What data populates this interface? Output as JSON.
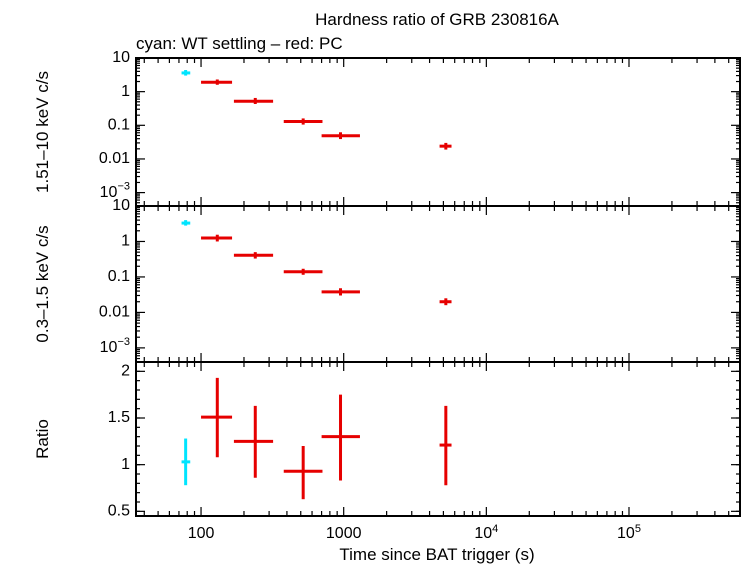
{
  "title": "Hardness ratio of GRB 230816A",
  "subtitle": "cyan: WT settling – red: PC",
  "colors": {
    "wt": "#00e5ff",
    "pc": "#e60000"
  },
  "chart_data": [
    {
      "type": "scatter",
      "ylabel": "1.51–10 keV c/s",
      "yscale": "log",
      "ylim": [
        0.0004,
        10
      ],
      "yticks": [
        {
          "v": 10,
          "m": "10",
          "e": ""
        },
        {
          "v": 1,
          "m": "1",
          "e": ""
        },
        {
          "v": 0.1,
          "m": "0.1",
          "e": ""
        },
        {
          "v": 0.01,
          "m": "0.01",
          "e": ""
        },
        {
          "v": 0.001,
          "m": "10",
          "e": "−3"
        }
      ],
      "series": [
        {
          "mode": "WT",
          "points": [
            {
              "x": 78,
              "xlo": 73,
              "xhi": 84,
              "y": 3.6,
              "ylo": 3.0,
              "yhi": 4.4
            }
          ]
        },
        {
          "mode": "PC",
          "points": [
            {
              "x": 130,
              "xlo": 100,
              "xhi": 165,
              "y": 1.9,
              "ylo": 1.6,
              "yhi": 2.3
            },
            {
              "x": 240,
              "xlo": 170,
              "xhi": 320,
              "y": 0.52,
              "ylo": 0.43,
              "yhi": 0.65
            },
            {
              "x": 520,
              "xlo": 380,
              "xhi": 710,
              "y": 0.13,
              "ylo": 0.105,
              "yhi": 0.16
            },
            {
              "x": 950,
              "xlo": 700,
              "xhi": 1300,
              "y": 0.049,
              "ylo": 0.039,
              "yhi": 0.062
            },
            {
              "x": 5200,
              "xlo": 4700,
              "xhi": 5700,
              "y": 0.024,
              "ylo": 0.019,
              "yhi": 0.03
            }
          ]
        }
      ]
    },
    {
      "type": "scatter",
      "ylabel": "0.3–1.5 keV c/s",
      "yscale": "log",
      "ylim": [
        0.0004,
        10
      ],
      "yticks": [
        {
          "v": 10,
          "m": "10",
          "e": ""
        },
        {
          "v": 1,
          "m": "1",
          "e": ""
        },
        {
          "v": 0.1,
          "m": "0.1",
          "e": ""
        },
        {
          "v": 0.01,
          "m": "0.01",
          "e": ""
        },
        {
          "v": 0.001,
          "m": "10",
          "e": "−3"
        }
      ],
      "series": [
        {
          "mode": "WT",
          "points": [
            {
              "x": 78,
              "xlo": 73,
              "xhi": 84,
              "y": 3.3,
              "ylo": 2.8,
              "yhi": 4.0
            }
          ]
        },
        {
          "mode": "PC",
          "points": [
            {
              "x": 130,
              "xlo": 100,
              "xhi": 165,
              "y": 1.25,
              "ylo": 1.0,
              "yhi": 1.55
            },
            {
              "x": 240,
              "xlo": 170,
              "xhi": 320,
              "y": 0.41,
              "ylo": 0.33,
              "yhi": 0.5
            },
            {
              "x": 520,
              "xlo": 380,
              "xhi": 710,
              "y": 0.14,
              "ylo": 0.115,
              "yhi": 0.17
            },
            {
              "x": 950,
              "xlo": 700,
              "xhi": 1300,
              "y": 0.038,
              "ylo": 0.03,
              "yhi": 0.048
            },
            {
              "x": 5200,
              "xlo": 4700,
              "xhi": 5700,
              "y": 0.02,
              "ylo": 0.016,
              "yhi": 0.025
            }
          ]
        }
      ]
    },
    {
      "type": "scatter",
      "ylabel": "Ratio",
      "yscale": "linear",
      "ylim": [
        0.45,
        2.1
      ],
      "yticks": [
        {
          "v": 2,
          "m": "2",
          "e": ""
        },
        {
          "v": 1.5,
          "m": "1.5",
          "e": ""
        },
        {
          "v": 1,
          "m": "1",
          "e": ""
        },
        {
          "v": 0.5,
          "m": "0.5",
          "e": ""
        }
      ],
      "series": [
        {
          "mode": "WT",
          "points": [
            {
              "x": 78,
              "xlo": 73,
              "xhi": 84,
              "y": 1.03,
              "ylo": 0.78,
              "yhi": 1.28
            }
          ]
        },
        {
          "mode": "PC",
          "points": [
            {
              "x": 130,
              "xlo": 100,
              "xhi": 165,
              "y": 1.51,
              "ylo": 1.08,
              "yhi": 1.93
            },
            {
              "x": 240,
              "xlo": 170,
              "xhi": 320,
              "y": 1.25,
              "ylo": 0.86,
              "yhi": 1.63
            },
            {
              "x": 520,
              "xlo": 380,
              "xhi": 710,
              "y": 0.93,
              "ylo": 0.63,
              "yhi": 1.2
            },
            {
              "x": 950,
              "xlo": 700,
              "xhi": 1300,
              "y": 1.3,
              "ylo": 0.83,
              "yhi": 1.75
            },
            {
              "x": 5200,
              "xlo": 4700,
              "xhi": 5700,
              "y": 1.21,
              "ylo": 0.78,
              "yhi": 1.63
            }
          ]
        }
      ]
    }
  ],
  "xaxis": {
    "label": "Time since BAT trigger (s)",
    "scale": "log",
    "xlim": [
      35,
      600000
    ],
    "ticks": [
      {
        "v": 100,
        "m": "100",
        "e": ""
      },
      {
        "v": 1000,
        "m": "1000",
        "e": ""
      },
      {
        "v": 10000,
        "m": "10",
        "e": "4"
      },
      {
        "v": 100000,
        "m": "10",
        "e": "5"
      }
    ]
  }
}
